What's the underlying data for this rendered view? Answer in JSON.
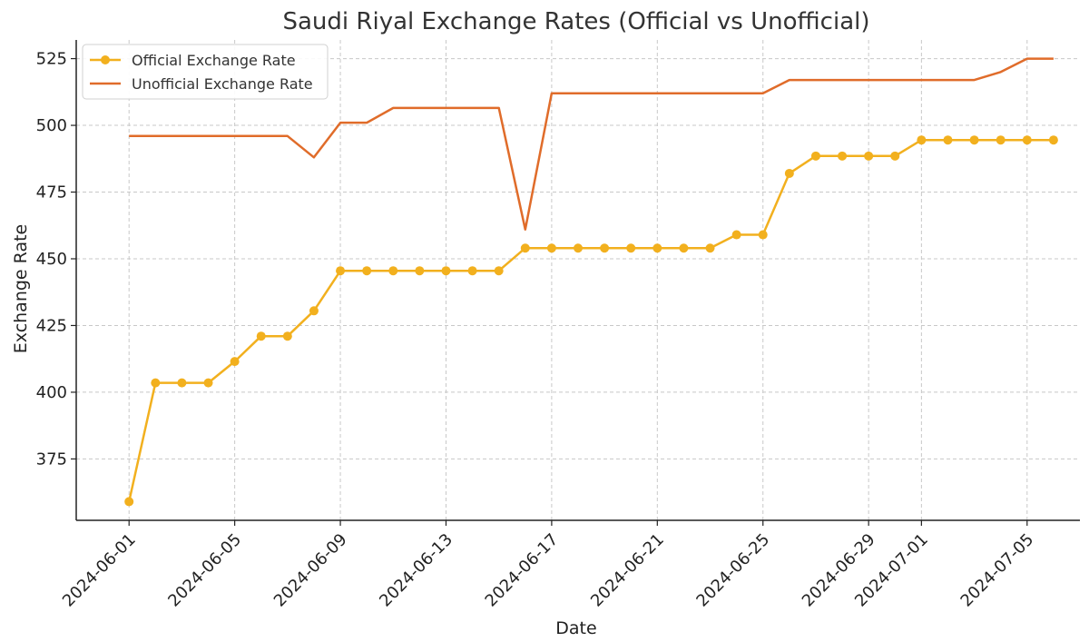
{
  "chart_data": {
    "type": "line",
    "title": "Saudi Riyal Exchange Rates (Official vs Unofficial)",
    "xlabel": "Date",
    "ylabel": "Exchange Rate",
    "x": [
      "2024-06-01",
      "2024-06-02",
      "2024-06-03",
      "2024-06-04",
      "2024-06-05",
      "2024-06-06",
      "2024-06-07",
      "2024-06-08",
      "2024-06-09",
      "2024-06-10",
      "2024-06-11",
      "2024-06-12",
      "2024-06-13",
      "2024-06-14",
      "2024-06-15",
      "2024-06-16",
      "2024-06-17",
      "2024-06-18",
      "2024-06-19",
      "2024-06-20",
      "2024-06-21",
      "2024-06-22",
      "2024-06-23",
      "2024-06-24",
      "2024-06-25",
      "2024-06-26",
      "2024-06-27",
      "2024-06-28",
      "2024-06-29",
      "2024-06-30",
      "2024-07-01",
      "2024-07-02",
      "2024-07-03",
      "2024-07-04",
      "2024-07-05",
      "2024-07-06"
    ],
    "xticks": [
      "2024-06-01",
      "2024-06-05",
      "2024-06-09",
      "2024-06-13",
      "2024-06-17",
      "2024-06-21",
      "2024-06-25",
      "2024-06-29",
      "2024-07-01",
      "2024-07-05"
    ],
    "yticks": [
      375,
      400,
      425,
      450,
      475,
      500,
      525
    ],
    "ylim": [
      352,
      532
    ],
    "xlim": [
      "2024-05-30",
      "2024-07-07"
    ],
    "grid": true,
    "legend": "top-left",
    "series": [
      {
        "name": "Official Exchange Rate",
        "color": "#F2B01E",
        "marker": "circle",
        "values": [
          359,
          403.5,
          403.5,
          403.5,
          411.5,
          421,
          421,
          430.5,
          445.5,
          445.5,
          445.5,
          445.5,
          445.5,
          445.5,
          445.5,
          454,
          454,
          454,
          454,
          454,
          454,
          454,
          454,
          459,
          459,
          482,
          488.5,
          488.5,
          488.5,
          488.5,
          494.5,
          494.5,
          494.5,
          494.5,
          494.5,
          494.5
        ]
      },
      {
        "name": "Unofficial Exchange Rate",
        "color": "#E06C2A",
        "marker": "none",
        "values": [
          496,
          496,
          496,
          496,
          496,
          496,
          496,
          488,
          501,
          501,
          506.5,
          506.5,
          506.5,
          506.5,
          506.5,
          461,
          512,
          512,
          512,
          512,
          512,
          512,
          512,
          512,
          512,
          517,
          517,
          517,
          517,
          517,
          517,
          517,
          517,
          520,
          525,
          525
        ]
      }
    ]
  }
}
